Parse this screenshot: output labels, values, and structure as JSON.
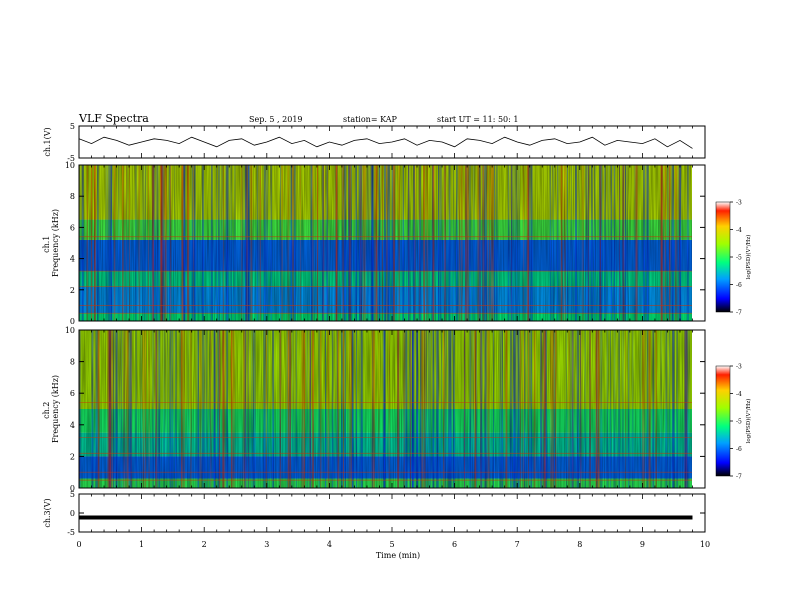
{
  "header": {
    "title": "VLF Spectra",
    "date": "Sep. 5 , 2019",
    "station": "station= KAP",
    "start": "start UT = 11: 50: 1"
  },
  "chart_data": [
    {
      "type": "line",
      "ylabel": "ch.1(V)",
      "ylim": [
        -5,
        5
      ],
      "yticks": [
        "5",
        "-5"
      ],
      "x": [
        0,
        0.2,
        0.4,
        0.6,
        0.8,
        1.0,
        1.2,
        1.4,
        1.6,
        1.8,
        2.0,
        2.2,
        2.4,
        2.6,
        2.8,
        3.0,
        3.2,
        3.4,
        3.6,
        3.8,
        4.0,
        4.2,
        4.4,
        4.6,
        4.8,
        5.0,
        5.2,
        5.4,
        5.6,
        5.8,
        6.0,
        6.2,
        6.4,
        6.6,
        6.8,
        7.0,
        7.2,
        7.4,
        7.6,
        7.8,
        8.0,
        8.2,
        8.4,
        8.6,
        8.8,
        9.0,
        9.2,
        9.4,
        9.6,
        9.8
      ],
      "values": [
        1.0,
        -0.5,
        1.5,
        0.5,
        -1.0,
        0.0,
        1.0,
        0.5,
        -0.5,
        1.5,
        0.0,
        -1.5,
        0.5,
        1.0,
        -1.0,
        0.0,
        1.5,
        -0.5,
        0.5,
        -1.5,
        0.0,
        -1.0,
        0.5,
        1.0,
        -0.5,
        0.0,
        1.0,
        -1.0,
        0.5,
        0.0,
        -1.5,
        1.0,
        0.5,
        -0.5,
        1.5,
        0.0,
        -1.0,
        0.5,
        1.0,
        -0.5,
        0.0,
        1.5,
        -1.0,
        0.5,
        0.0,
        -0.5,
        1.0,
        -1.5,
        0.5,
        -2.0
      ]
    },
    {
      "type": "heatmap",
      "ylabel": "ch.1\nFrequency (kHz)",
      "ylim": [
        0,
        10
      ],
      "yticks": [
        "0",
        "2",
        "4",
        "6",
        "8",
        "10"
      ],
      "colorbar": {
        "label": "log(PSD)(V²/Hz)",
        "ticks": [
          "-3",
          "-4",
          "-5",
          "-6",
          "-7"
        ],
        "range": [
          -7,
          -3
        ]
      },
      "bands": [
        {
          "f": [
            0,
            0.5
          ],
          "level": -5.2
        },
        {
          "f": [
            0.5,
            2.2
          ],
          "level": -5.8
        },
        {
          "f": [
            2.2,
            3.2
          ],
          "level": -5.3
        },
        {
          "f": [
            3.2,
            5.2
          ],
          "level": -6.0
        },
        {
          "f": [
            5.2,
            6.5
          ],
          "level": -4.9
        },
        {
          "f": [
            6.5,
            10
          ],
          "level": -4.3
        }
      ]
    },
    {
      "type": "heatmap",
      "ylabel": "ch.2\nFrequency (kHz)",
      "ylim": [
        0,
        10
      ],
      "yticks": [
        "0",
        "2",
        "4",
        "6",
        "8",
        "10"
      ],
      "colorbar": {
        "label": "log(PSD)(V²/Hz)",
        "ticks": [
          "-3",
          "-4",
          "-5",
          "-6",
          "-7"
        ],
        "range": [
          -7,
          -3
        ]
      },
      "bands": [
        {
          "f": [
            0,
            0.6
          ],
          "level": -5.0
        },
        {
          "f": [
            0.6,
            2.0
          ],
          "level": -6.0
        },
        {
          "f": [
            2.0,
            3.5
          ],
          "level": -5.4
        },
        {
          "f": [
            3.5,
            5.0
          ],
          "level": -5.1
        },
        {
          "f": [
            5.0,
            10
          ],
          "level": -4.4
        }
      ]
    },
    {
      "type": "line",
      "ylabel": "ch.3(V)",
      "ylim": [
        -5,
        5
      ],
      "yticks": [
        "5",
        "0",
        "-5"
      ],
      "x": [
        0,
        9.8
      ],
      "values": [
        -1.2,
        -1.2
      ]
    }
  ],
  "xaxis": {
    "label": "Time (min)",
    "ticks": [
      "0",
      "1",
      "2",
      "3",
      "4",
      "5",
      "6",
      "7",
      "8",
      "9",
      "10"
    ],
    "range": [
      0,
      10
    ]
  }
}
